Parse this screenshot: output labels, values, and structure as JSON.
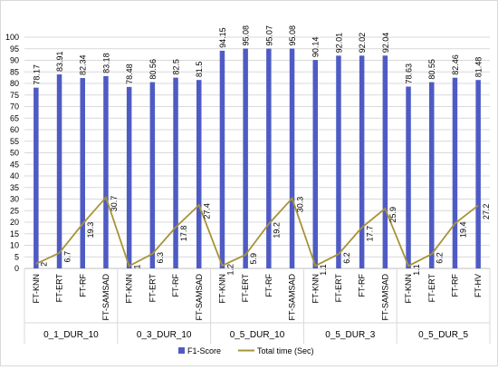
{
  "chart_data": {
    "type": "bar",
    "ylim": [
      0,
      100
    ],
    "yticks": [
      0,
      5,
      10,
      15,
      20,
      25,
      30,
      35,
      40,
      45,
      50,
      55,
      60,
      65,
      70,
      75,
      80,
      85,
      90,
      95,
      100
    ],
    "grid": true,
    "legend_position": "bottom-center",
    "categories": [
      "FT-KNN",
      "FT-ERT",
      "FT-RF",
      "FT-SAMSAD",
      "FT-KNN",
      "FT-ERT",
      "FT-RF",
      "FT-SAMSAD",
      "FT-KNN",
      "FT-ERT",
      "FT-RF",
      "FT-SAMSAD",
      "FT-KNN",
      "FT-ERT",
      "FT-RF",
      "FT-SAMSAD",
      "FT-KNN",
      "FT-ERT",
      "FT-RF",
      "FT-HV"
    ],
    "groups": [
      {
        "label": "0_1_DUR_10",
        "size": 4
      },
      {
        "label": "0_3_DUR_10",
        "size": 4
      },
      {
        "label": "0_5_DUR_10",
        "size": 4
      },
      {
        "label": "0_5_DUR_3",
        "size": 4
      },
      {
        "label": "0_5_DUR_5",
        "size": 4
      }
    ],
    "series": [
      {
        "name": "F1-Score",
        "type": "bar",
        "color": "#4f5bc4",
        "values": [
          78.17,
          83.91,
          82.34,
          83.18,
          78.48,
          80.56,
          82.5,
          81.5,
          94.15,
          95.08,
          95.07,
          95.08,
          90.14,
          92.01,
          92.02,
          92.04,
          78.63,
          80.55,
          82.46,
          81.48
        ],
        "labels": [
          "78.17",
          "83.91",
          "82.34",
          "83.18",
          "78.48",
          "80.56",
          "82.5",
          "81.5",
          "94.15",
          "95.08",
          "95.07",
          "95.08",
          "90.14",
          "92.01",
          "92.02",
          "92.04",
          "78.63",
          "80.55",
          "82.46",
          "81.48"
        ]
      },
      {
        "name": "Total time (Sec)",
        "type": "line",
        "color": "#a89338",
        "values": [
          2,
          6.7,
          19.3,
          30.7,
          1,
          6.3,
          17.8,
          27.4,
          1.2,
          5.9,
          19.2,
          30.3,
          1.1,
          6.2,
          17.7,
          25.9,
          1.1,
          6.2,
          19.4,
          27.2
        ],
        "labels": [
          "2",
          "6.7",
          "19.3",
          "30.7",
          "1",
          "6.3",
          "17.8",
          "27.4",
          "1.2",
          "5.9",
          "19.2",
          "30.3",
          "1.1",
          "6.2",
          "17.7",
          "25.9",
          "1.1",
          "6.2",
          "19.4",
          "27.2"
        ]
      }
    ]
  }
}
